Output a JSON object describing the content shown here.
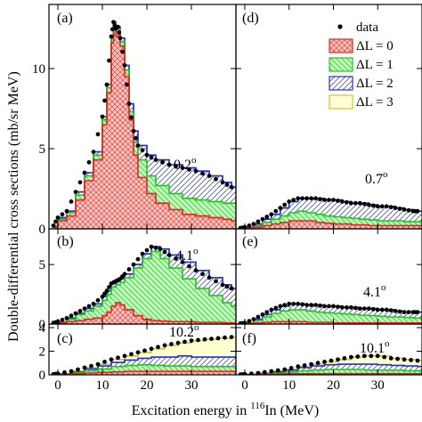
{
  "chart_data": {
    "type": "line",
    "xlabel": "Excitation energy in 116In (MeV)",
    "xlabel_parts": {
      "prefix": "Excitation energy in ",
      "superscript": "116",
      "element": "In",
      "suffix": " (MeV)"
    },
    "ylabel": "Double-differential cross sections (mb/sr MeV)",
    "xlim": [
      -2,
      40
    ],
    "x_ticks": [
      0,
      10,
      20,
      30
    ],
    "legend": {
      "placement": "top-right of panel (d)",
      "entries": [
        {
          "key": "data",
          "label": "data",
          "style": "black dots"
        },
        {
          "key": "dL0",
          "label": "ΔL = 0",
          "color": "#e8231e",
          "fill": "#f4c8c2",
          "hatch": "cross"
        },
        {
          "key": "dL1",
          "label": "ΔL = 1",
          "color": "#22c422",
          "fill": "#c8f0c2",
          "hatch": "diag-down"
        },
        {
          "key": "dL2",
          "label": "ΔL = 2",
          "color": "#1e2ee0",
          "fill": "#ffffff",
          "hatch": "diag-up"
        },
        {
          "key": "dL3",
          "label": "ΔL = 3",
          "color": "#c8c832",
          "fill": "#ffffd2",
          "hatch": "none"
        }
      ]
    },
    "rows": [
      {
        "ylim": [
          0,
          14
        ],
        "y_ticks": [
          0,
          5,
          10
        ]
      },
      {
        "ylim": [
          0,
          8
        ],
        "y_ticks": [
          0,
          5
        ]
      },
      {
        "ylim": [
          0,
          4.3
        ],
        "y_ticks": [
          0,
          2,
          4
        ]
      }
    ],
    "panels": [
      {
        "id": "a",
        "tag": "(a)",
        "angle": "0.2",
        "angle_unit": "o",
        "row": 0,
        "col": 0,
        "x": [
          -1,
          0,
          2,
          4,
          6,
          8,
          10,
          11,
          12,
          12.5,
          13,
          13.5,
          14,
          15,
          16,
          17,
          18,
          20,
          22,
          25,
          28,
          31,
          34,
          37,
          39
        ],
        "data": [
          0.2,
          0.7,
          1.1,
          2.3,
          3.5,
          4.8,
          7.0,
          9.0,
          12.0,
          12.9,
          12.5,
          12.6,
          11.9,
          10.2,
          7.8,
          6.1,
          5.2,
          4.6,
          4.3,
          4.0,
          3.8,
          3.6,
          3.3,
          2.9,
          2.6
        ],
        "series": [
          {
            "key": "dL0",
            "values": [
              0.1,
              0.5,
              0.8,
              1.8,
              3.0,
              4.3,
              6.5,
              8.5,
              11.6,
              12.6,
              12.0,
              12.2,
              11.4,
              9.5,
              6.8,
              4.6,
              3.2,
              2.2,
              1.6,
              1.2,
              0.9,
              0.8,
              0.7,
              0.6,
              0.5
            ]
          },
          {
            "key": "dL1",
            "values": [
              0.2,
              0.6,
              1.0,
              2.1,
              3.3,
              4.6,
              6.8,
              8.8,
              11.9,
              12.8,
              12.3,
              12.5,
              11.7,
              9.9,
              7.3,
              5.4,
              4.3,
              3.3,
              2.7,
              2.2,
              1.9,
              1.8,
              1.7,
              1.6,
              1.6
            ]
          },
          {
            "key": "dL2",
            "values": [
              0.2,
              0.7,
              1.1,
              2.3,
              3.5,
              4.8,
              7.0,
              9.0,
              12.0,
              12.9,
              12.5,
              12.6,
              11.9,
              10.2,
              7.8,
              6.1,
              5.2,
              4.6,
              4.3,
              4.0,
              3.8,
              3.6,
              3.3,
              2.9,
              2.6
            ]
          },
          {
            "key": "dL3",
            "values": [
              0.2,
              0.7,
              1.1,
              2.3,
              3.5,
              4.8,
              7.0,
              9.0,
              12.0,
              12.9,
              12.5,
              12.6,
              11.9,
              10.2,
              7.8,
              6.1,
              5.2,
              4.6,
              4.3,
              4.0,
              3.8,
              3.6,
              3.3,
              2.9,
              2.6
            ]
          }
        ]
      },
      {
        "id": "b",
        "tag": "(b)",
        "angle": "4.1",
        "angle_unit": "o",
        "row": 1,
        "col": 0,
        "x": [
          -1,
          0,
          2,
          4,
          6,
          8,
          10,
          11,
          12,
          13,
          14,
          15,
          17,
          19,
          21,
          23,
          25,
          28,
          31,
          34,
          37,
          39
        ],
        "data": [
          0.1,
          0.2,
          0.5,
          0.9,
          1.3,
          1.7,
          2.3,
          2.8,
          3.4,
          3.6,
          3.8,
          4.2,
          5.0,
          5.9,
          6.5,
          6.3,
          5.8,
          5.2,
          4.5,
          3.9,
          3.3,
          3.0
        ],
        "series": [
          {
            "key": "dL0",
            "values": [
              0.05,
              0.1,
              0.2,
              0.3,
              0.4,
              0.5,
              0.7,
              1.0,
              1.5,
              1.8,
              1.6,
              1.2,
              0.7,
              0.4,
              0.3,
              0.25,
              0.2,
              0.2,
              0.15,
              0.15,
              0.1,
              0.1
            ]
          },
          {
            "key": "dL1",
            "values": [
              0.1,
              0.2,
              0.4,
              0.8,
              1.1,
              1.5,
              2.0,
              2.5,
              3.1,
              3.3,
              3.5,
              3.9,
              4.7,
              5.5,
              6.1,
              5.5,
              4.7,
              3.8,
              3.0,
              2.4,
              1.8,
              1.5
            ]
          },
          {
            "key": "dL2",
            "values": [
              0.1,
              0.2,
              0.5,
              0.9,
              1.3,
              1.7,
              2.3,
              2.8,
              3.4,
              3.6,
              3.8,
              4.2,
              5.0,
              5.9,
              6.5,
              6.3,
              5.8,
              5.2,
              4.5,
              3.9,
              3.3,
              3.0
            ]
          },
          {
            "key": "dL3",
            "values": [
              0.1,
              0.2,
              0.5,
              0.9,
              1.3,
              1.7,
              2.3,
              2.8,
              3.4,
              3.6,
              3.8,
              4.2,
              5.0,
              5.9,
              6.5,
              6.3,
              5.8,
              5.2,
              4.5,
              3.9,
              3.3,
              3.0
            ]
          }
        ]
      },
      {
        "id": "c",
        "tag": "(c)",
        "angle": "10.2",
        "angle_unit": "o",
        "row": 2,
        "col": 0,
        "x": [
          -1,
          0,
          3,
          6,
          9,
          12,
          15,
          18,
          21,
          24,
          27,
          30,
          33,
          36,
          39
        ],
        "data": [
          0.05,
          0.1,
          0.3,
          0.6,
          0.9,
          1.3,
          1.6,
          1.9,
          2.2,
          2.5,
          2.7,
          2.9,
          3.0,
          3.1,
          3.2
        ],
        "series": [
          {
            "key": "dL0",
            "values": [
              0.02,
              0.05,
              0.1,
              0.15,
              0.2,
              0.25,
              0.3,
              0.3,
              0.3,
              0.3,
              0.3,
              0.3,
              0.3,
              0.3,
              0.3
            ]
          },
          {
            "key": "dL1",
            "values": [
              0.03,
              0.08,
              0.2,
              0.35,
              0.5,
              0.7,
              0.8,
              0.85,
              0.8,
              0.75,
              0.75,
              0.7,
              0.7,
              0.7,
              0.7
            ]
          },
          {
            "key": "dL2",
            "values": [
              0.04,
              0.09,
              0.25,
              0.5,
              0.75,
              1.05,
              1.25,
              1.4,
              1.5,
              1.5,
              1.6,
              1.5,
              1.5,
              1.5,
              1.5
            ]
          },
          {
            "key": "dL3",
            "values": [
              0.05,
              0.1,
              0.3,
              0.6,
              0.9,
              1.3,
              1.6,
              1.9,
              2.2,
              2.5,
              2.7,
              2.9,
              3.0,
              3.1,
              3.2
            ]
          }
        ]
      },
      {
        "id": "d",
        "tag": "(d)",
        "angle": "0.7",
        "angle_unit": "o",
        "row": 0,
        "col": 1,
        "x": [
          -1,
          0,
          2,
          4,
          6,
          8,
          10,
          12,
          14,
          16,
          18,
          20,
          22,
          24,
          26,
          28,
          30,
          32,
          34,
          36,
          38,
          39
        ],
        "data": [
          0.05,
          0.1,
          0.3,
          0.6,
          0.9,
          1.3,
          1.7,
          1.9,
          1.9,
          1.9,
          1.8,
          1.8,
          1.7,
          1.6,
          1.6,
          1.5,
          1.4,
          1.4,
          1.3,
          1.2,
          1.1,
          1.1
        ],
        "series": [
          {
            "key": "dL0",
            "values": [
              0.02,
              0.05,
              0.1,
              0.2,
              0.3,
              0.4,
              0.5,
              0.5,
              0.5,
              0.4,
              0.35,
              0.3,
              0.3,
              0.25,
              0.25,
              0.2,
              0.2,
              0.2,
              0.2,
              0.2,
              0.2,
              0.2
            ]
          },
          {
            "key": "dL1",
            "values": [
              0.03,
              0.07,
              0.2,
              0.4,
              0.6,
              0.8,
              1.0,
              1.1,
              1.0,
              0.9,
              0.8,
              0.75,
              0.7,
              0.65,
              0.6,
              0.55,
              0.5,
              0.5,
              0.5,
              0.45,
              0.45,
              0.45
            ]
          },
          {
            "key": "dL2",
            "values": [
              0.05,
              0.1,
              0.3,
              0.6,
              0.9,
              1.3,
              1.7,
              1.9,
              1.9,
              1.9,
              1.8,
              1.8,
              1.7,
              1.6,
              1.6,
              1.5,
              1.4,
              1.4,
              1.3,
              1.2,
              1.1,
              1.1
            ]
          },
          {
            "key": "dL3",
            "values": [
              0.05,
              0.1,
              0.3,
              0.6,
              0.9,
              1.3,
              1.7,
              1.9,
              1.9,
              1.9,
              1.8,
              1.8,
              1.7,
              1.6,
              1.6,
              1.5,
              1.4,
              1.4,
              1.3,
              1.2,
              1.1,
              1.1
            ]
          }
        ]
      },
      {
        "id": "e",
        "tag": "(e)",
        "angle": "4.1",
        "angle_unit": "o",
        "row": 1,
        "col": 1,
        "x": [
          -1,
          0,
          2,
          4,
          6,
          8,
          10,
          12,
          14,
          16,
          18,
          20,
          22,
          24,
          26,
          28,
          30,
          32,
          34,
          36,
          38,
          39
        ],
        "data": [
          0.05,
          0.1,
          0.4,
          0.8,
          1.2,
          1.5,
          1.7,
          1.7,
          1.6,
          1.6,
          1.5,
          1.5,
          1.4,
          1.4,
          1.3,
          1.3,
          1.2,
          1.2,
          1.1,
          1.0,
          1.0,
          1.0
        ],
        "series": [
          {
            "key": "dL0",
            "values": [
              0.02,
              0.04,
              0.1,
              0.15,
              0.2,
              0.2,
              0.2,
              0.2,
              0.15,
              0.15,
              0.15,
              0.1,
              0.1,
              0.1,
              0.1,
              0.1,
              0.1,
              0.1,
              0.1,
              0.1,
              0.1,
              0.1
            ]
          },
          {
            "key": "dL1",
            "values": [
              0.04,
              0.08,
              0.3,
              0.6,
              0.9,
              1.1,
              1.2,
              1.2,
              1.1,
              1.0,
              0.95,
              0.9,
              0.85,
              0.8,
              0.75,
              0.7,
              0.65,
              0.6,
              0.6,
              0.55,
              0.5,
              0.5
            ]
          },
          {
            "key": "dL2",
            "values": [
              0.05,
              0.1,
              0.4,
              0.8,
              1.2,
              1.5,
              1.7,
              1.7,
              1.6,
              1.6,
              1.5,
              1.5,
              1.4,
              1.4,
              1.3,
              1.3,
              1.2,
              1.2,
              1.1,
              1.0,
              1.0,
              1.0
            ]
          },
          {
            "key": "dL3",
            "values": [
              0.05,
              0.1,
              0.4,
              0.8,
              1.2,
              1.5,
              1.7,
              1.7,
              1.6,
              1.6,
              1.5,
              1.5,
              1.4,
              1.4,
              1.3,
              1.3,
              1.2,
              1.2,
              1.1,
              1.0,
              1.0,
              1.0
            ]
          }
        ]
      },
      {
        "id": "f",
        "tag": "(f)",
        "angle": "10.1",
        "angle_unit": "o",
        "row": 2,
        "col": 1,
        "x": [
          -1,
          0,
          3,
          6,
          9,
          12,
          15,
          18,
          21,
          24,
          27,
          30,
          33,
          36,
          39
        ],
        "data": [
          0.02,
          0.05,
          0.15,
          0.3,
          0.45,
          0.7,
          0.9,
          1.1,
          1.3,
          1.5,
          1.6,
          1.6,
          1.4,
          1.3,
          1.2
        ],
        "series": [
          {
            "key": "dL0",
            "values": [
              0.01,
              0.02,
              0.05,
              0.08,
              0.1,
              0.1,
              0.1,
              0.1,
              0.1,
              0.1,
              0.1,
              0.1,
              0.1,
              0.1,
              0.1
            ]
          },
          {
            "key": "dL1",
            "values": [
              0.01,
              0.03,
              0.08,
              0.15,
              0.25,
              0.35,
              0.4,
              0.45,
              0.45,
              0.45,
              0.4,
              0.4,
              0.4,
              0.35,
              0.35
            ]
          },
          {
            "key": "dL2",
            "values": [
              0.02,
              0.04,
              0.12,
              0.25,
              0.4,
              0.6,
              0.75,
              0.85,
              0.9,
              0.9,
              0.9,
              0.85,
              0.8,
              0.75,
              0.7
            ]
          },
          {
            "key": "dL3",
            "values": [
              0.02,
              0.05,
              0.15,
              0.3,
              0.45,
              0.7,
              0.9,
              1.1,
              1.3,
              1.5,
              1.6,
              1.6,
              1.4,
              1.3,
              1.2
            ]
          }
        ]
      }
    ]
  }
}
